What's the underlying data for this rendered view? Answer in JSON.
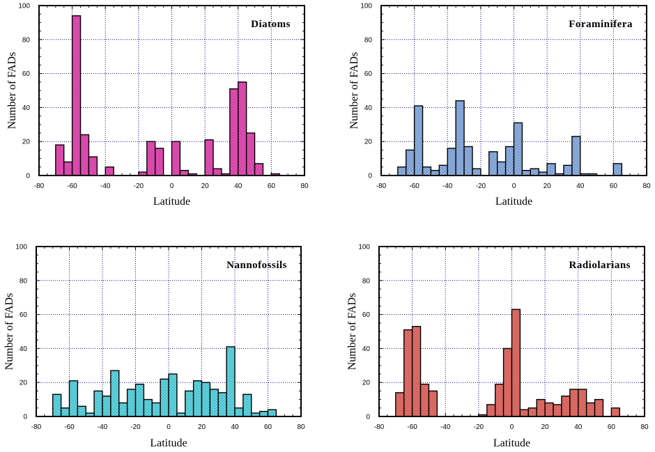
{
  "chart_data": [
    {
      "type": "bar",
      "title": "Diatoms",
      "xlabel": "Latitude",
      "ylabel": "Number of FADs",
      "xlim": [
        -80,
        80
      ],
      "ylim": [
        0,
        100
      ],
      "xticks": [
        "-80",
        "-60",
        "-40",
        "-20",
        "0",
        "20",
        "40",
        "60",
        "80"
      ],
      "yticks": [
        "0",
        "20",
        "40",
        "60",
        "80",
        "100"
      ],
      "grid": true,
      "bin_width": 5,
      "color": "#e84fb8",
      "bins": [
        {
          "x": -67.5,
          "value": 18
        },
        {
          "x": -62.5,
          "value": 8
        },
        {
          "x": -57.5,
          "value": 94
        },
        {
          "x": -52.5,
          "value": 24
        },
        {
          "x": -47.5,
          "value": 11
        },
        {
          "x": -37.5,
          "value": 5
        },
        {
          "x": -17.5,
          "value": 2
        },
        {
          "x": -12.5,
          "value": 20
        },
        {
          "x": -7.5,
          "value": 16
        },
        {
          "x": 2.5,
          "value": 20
        },
        {
          "x": 7.5,
          "value": 3
        },
        {
          "x": 12.5,
          "value": 1
        },
        {
          "x": 22.5,
          "value": 21
        },
        {
          "x": 27.5,
          "value": 4
        },
        {
          "x": 32.5,
          "value": 1
        },
        {
          "x": 37.5,
          "value": 51
        },
        {
          "x": 42.5,
          "value": 55
        },
        {
          "x": 47.5,
          "value": 25
        },
        {
          "x": 52.5,
          "value": 7
        },
        {
          "x": 62.5,
          "value": 1
        }
      ]
    },
    {
      "type": "bar",
      "title": "Foraminifera",
      "xlabel": "Latitude",
      "ylabel": "Number of FADs",
      "xlim": [
        -80,
        80
      ],
      "ylim": [
        0,
        100
      ],
      "xticks": [
        "-80",
        "-60",
        "-40",
        "-20",
        "0",
        "20",
        "40",
        "60",
        "80"
      ],
      "yticks": [
        "0",
        "20",
        "40",
        "60",
        "80",
        "100"
      ],
      "grid": true,
      "bin_width": 5,
      "color": "#8fb2e6",
      "bins": [
        {
          "x": -67.5,
          "value": 5
        },
        {
          "x": -62.5,
          "value": 15
        },
        {
          "x": -57.5,
          "value": 41
        },
        {
          "x": -52.5,
          "value": 5
        },
        {
          "x": -47.5,
          "value": 3
        },
        {
          "x": -42.5,
          "value": 6
        },
        {
          "x": -37.5,
          "value": 16
        },
        {
          "x": -32.5,
          "value": 44
        },
        {
          "x": -27.5,
          "value": 17
        },
        {
          "x": -22.5,
          "value": 4
        },
        {
          "x": -12.5,
          "value": 14
        },
        {
          "x": -7.5,
          "value": 8
        },
        {
          "x": -2.5,
          "value": 17
        },
        {
          "x": 2.5,
          "value": 31
        },
        {
          "x": 7.5,
          "value": 3
        },
        {
          "x": 12.5,
          "value": 4
        },
        {
          "x": 17.5,
          "value": 2
        },
        {
          "x": 22.5,
          "value": 7
        },
        {
          "x": 27.5,
          "value": 1
        },
        {
          "x": 32.5,
          "value": 6
        },
        {
          "x": 37.5,
          "value": 23
        },
        {
          "x": 42.5,
          "value": 1
        },
        {
          "x": 47.5,
          "value": 1
        },
        {
          "x": 62.5,
          "value": 7
        }
      ]
    },
    {
      "type": "bar",
      "title": "Nannofossils",
      "xlabel": "Latitude",
      "ylabel": "Number of FADs",
      "xlim": [
        -80,
        80
      ],
      "ylim": [
        0,
        100
      ],
      "xticks": [
        "-80",
        "-60",
        "-40",
        "-20",
        "0",
        "20",
        "40",
        "60",
        "80"
      ],
      "yticks": [
        "0",
        "20",
        "40",
        "60",
        "80",
        "100"
      ],
      "grid": true,
      "bin_width": 5,
      "color": "#5fd9e6",
      "bins": [
        {
          "x": -67.5,
          "value": 13
        },
        {
          "x": -62.5,
          "value": 5
        },
        {
          "x": -57.5,
          "value": 21
        },
        {
          "x": -52.5,
          "value": 6
        },
        {
          "x": -47.5,
          "value": 2
        },
        {
          "x": -42.5,
          "value": 15
        },
        {
          "x": -37.5,
          "value": 12
        },
        {
          "x": -32.5,
          "value": 27
        },
        {
          "x": -27.5,
          "value": 8
        },
        {
          "x": -22.5,
          "value": 16
        },
        {
          "x": -17.5,
          "value": 19
        },
        {
          "x": -12.5,
          "value": 10
        },
        {
          "x": -7.5,
          "value": 8
        },
        {
          "x": -2.5,
          "value": 22
        },
        {
          "x": 2.5,
          "value": 25
        },
        {
          "x": 7.5,
          "value": 2
        },
        {
          "x": 12.5,
          "value": 15
        },
        {
          "x": 17.5,
          "value": 21
        },
        {
          "x": 22.5,
          "value": 20
        },
        {
          "x": 27.5,
          "value": 16
        },
        {
          "x": 32.5,
          "value": 14
        },
        {
          "x": 37.5,
          "value": 41
        },
        {
          "x": 42.5,
          "value": 5
        },
        {
          "x": 47.5,
          "value": 13
        },
        {
          "x": 52.5,
          "value": 2
        },
        {
          "x": 57.5,
          "value": 3
        },
        {
          "x": 62.5,
          "value": 4
        }
      ]
    },
    {
      "type": "bar",
      "title": "Radiolarians",
      "xlabel": "Latitude",
      "ylabel": "Number of FADs",
      "xlim": [
        -80,
        80
      ],
      "ylim": [
        0,
        100
      ],
      "xticks": [
        "-80",
        "-60",
        "-40",
        "-20",
        "0",
        "20",
        "40",
        "60",
        "80"
      ],
      "yticks": [
        "0",
        "20",
        "40",
        "60",
        "80",
        "100"
      ],
      "grid": true,
      "bin_width": 5,
      "color": "#e8706a",
      "bins": [
        {
          "x": -67.5,
          "value": 14
        },
        {
          "x": -62.5,
          "value": 51
        },
        {
          "x": -57.5,
          "value": 53
        },
        {
          "x": -52.5,
          "value": 19
        },
        {
          "x": -47.5,
          "value": 15
        },
        {
          "x": -17.5,
          "value": 1
        },
        {
          "x": -12.5,
          "value": 7
        },
        {
          "x": -7.5,
          "value": 19
        },
        {
          "x": -2.5,
          "value": 40
        },
        {
          "x": 2.5,
          "value": 63
        },
        {
          "x": 7.5,
          "value": 4
        },
        {
          "x": 12.5,
          "value": 5
        },
        {
          "x": 17.5,
          "value": 10
        },
        {
          "x": 22.5,
          "value": 8
        },
        {
          "x": 27.5,
          "value": 7
        },
        {
          "x": 32.5,
          "value": 12
        },
        {
          "x": 37.5,
          "value": 16
        },
        {
          "x": 42.5,
          "value": 16
        },
        {
          "x": 47.5,
          "value": 8
        },
        {
          "x": 52.5,
          "value": 10
        },
        {
          "x": 62.5,
          "value": 5
        }
      ]
    }
  ]
}
